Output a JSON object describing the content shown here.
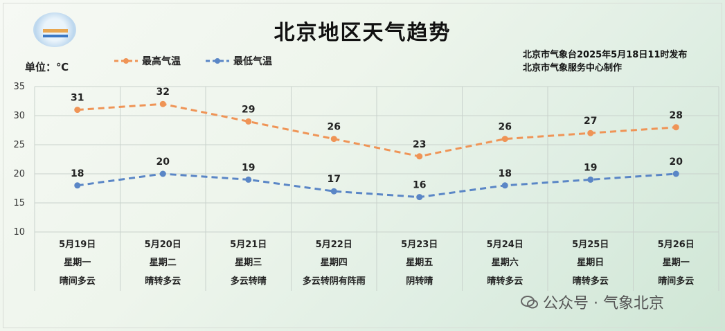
{
  "header": {
    "title": "北京地区天气趋势",
    "unit": "单位：℃",
    "issuer_line1": "北京市气象台2025年5月18日11时发布",
    "issuer_line2": "北京市气象服务中心制作",
    "watermark": "公众号 · 气象北京"
  },
  "chart_data": {
    "type": "line",
    "title": "北京地区天气趋势",
    "ylabel": "单位：℃",
    "ylim": [
      10,
      35
    ],
    "yticks": [
      10,
      15,
      20,
      25,
      30,
      35
    ],
    "grid": true,
    "legend_position": "top",
    "categories": [
      "5月19日",
      "5月20日",
      "5月21日",
      "5月22日",
      "5月23日",
      "5月24日",
      "5月25日",
      "5月26日"
    ],
    "weekdays": [
      "星期一",
      "星期二",
      "星期三",
      "星期四",
      "星期五",
      "星期六",
      "星期日",
      "星期一"
    ],
    "weather": [
      "晴间多云",
      "晴转多云",
      "多云转晴",
      "多云转阴有阵雨",
      "阴转晴",
      "晴转多云",
      "晴转多云",
      "晴间多云"
    ],
    "series": [
      {
        "name": "最高气温",
        "color": "#ef9456",
        "values": [
          31,
          32,
          29,
          26,
          23,
          26,
          27,
          28
        ]
      },
      {
        "name": "最低气温",
        "color": "#5a86c6",
        "values": [
          18,
          20,
          19,
          17,
          16,
          18,
          19,
          20
        ]
      }
    ]
  }
}
